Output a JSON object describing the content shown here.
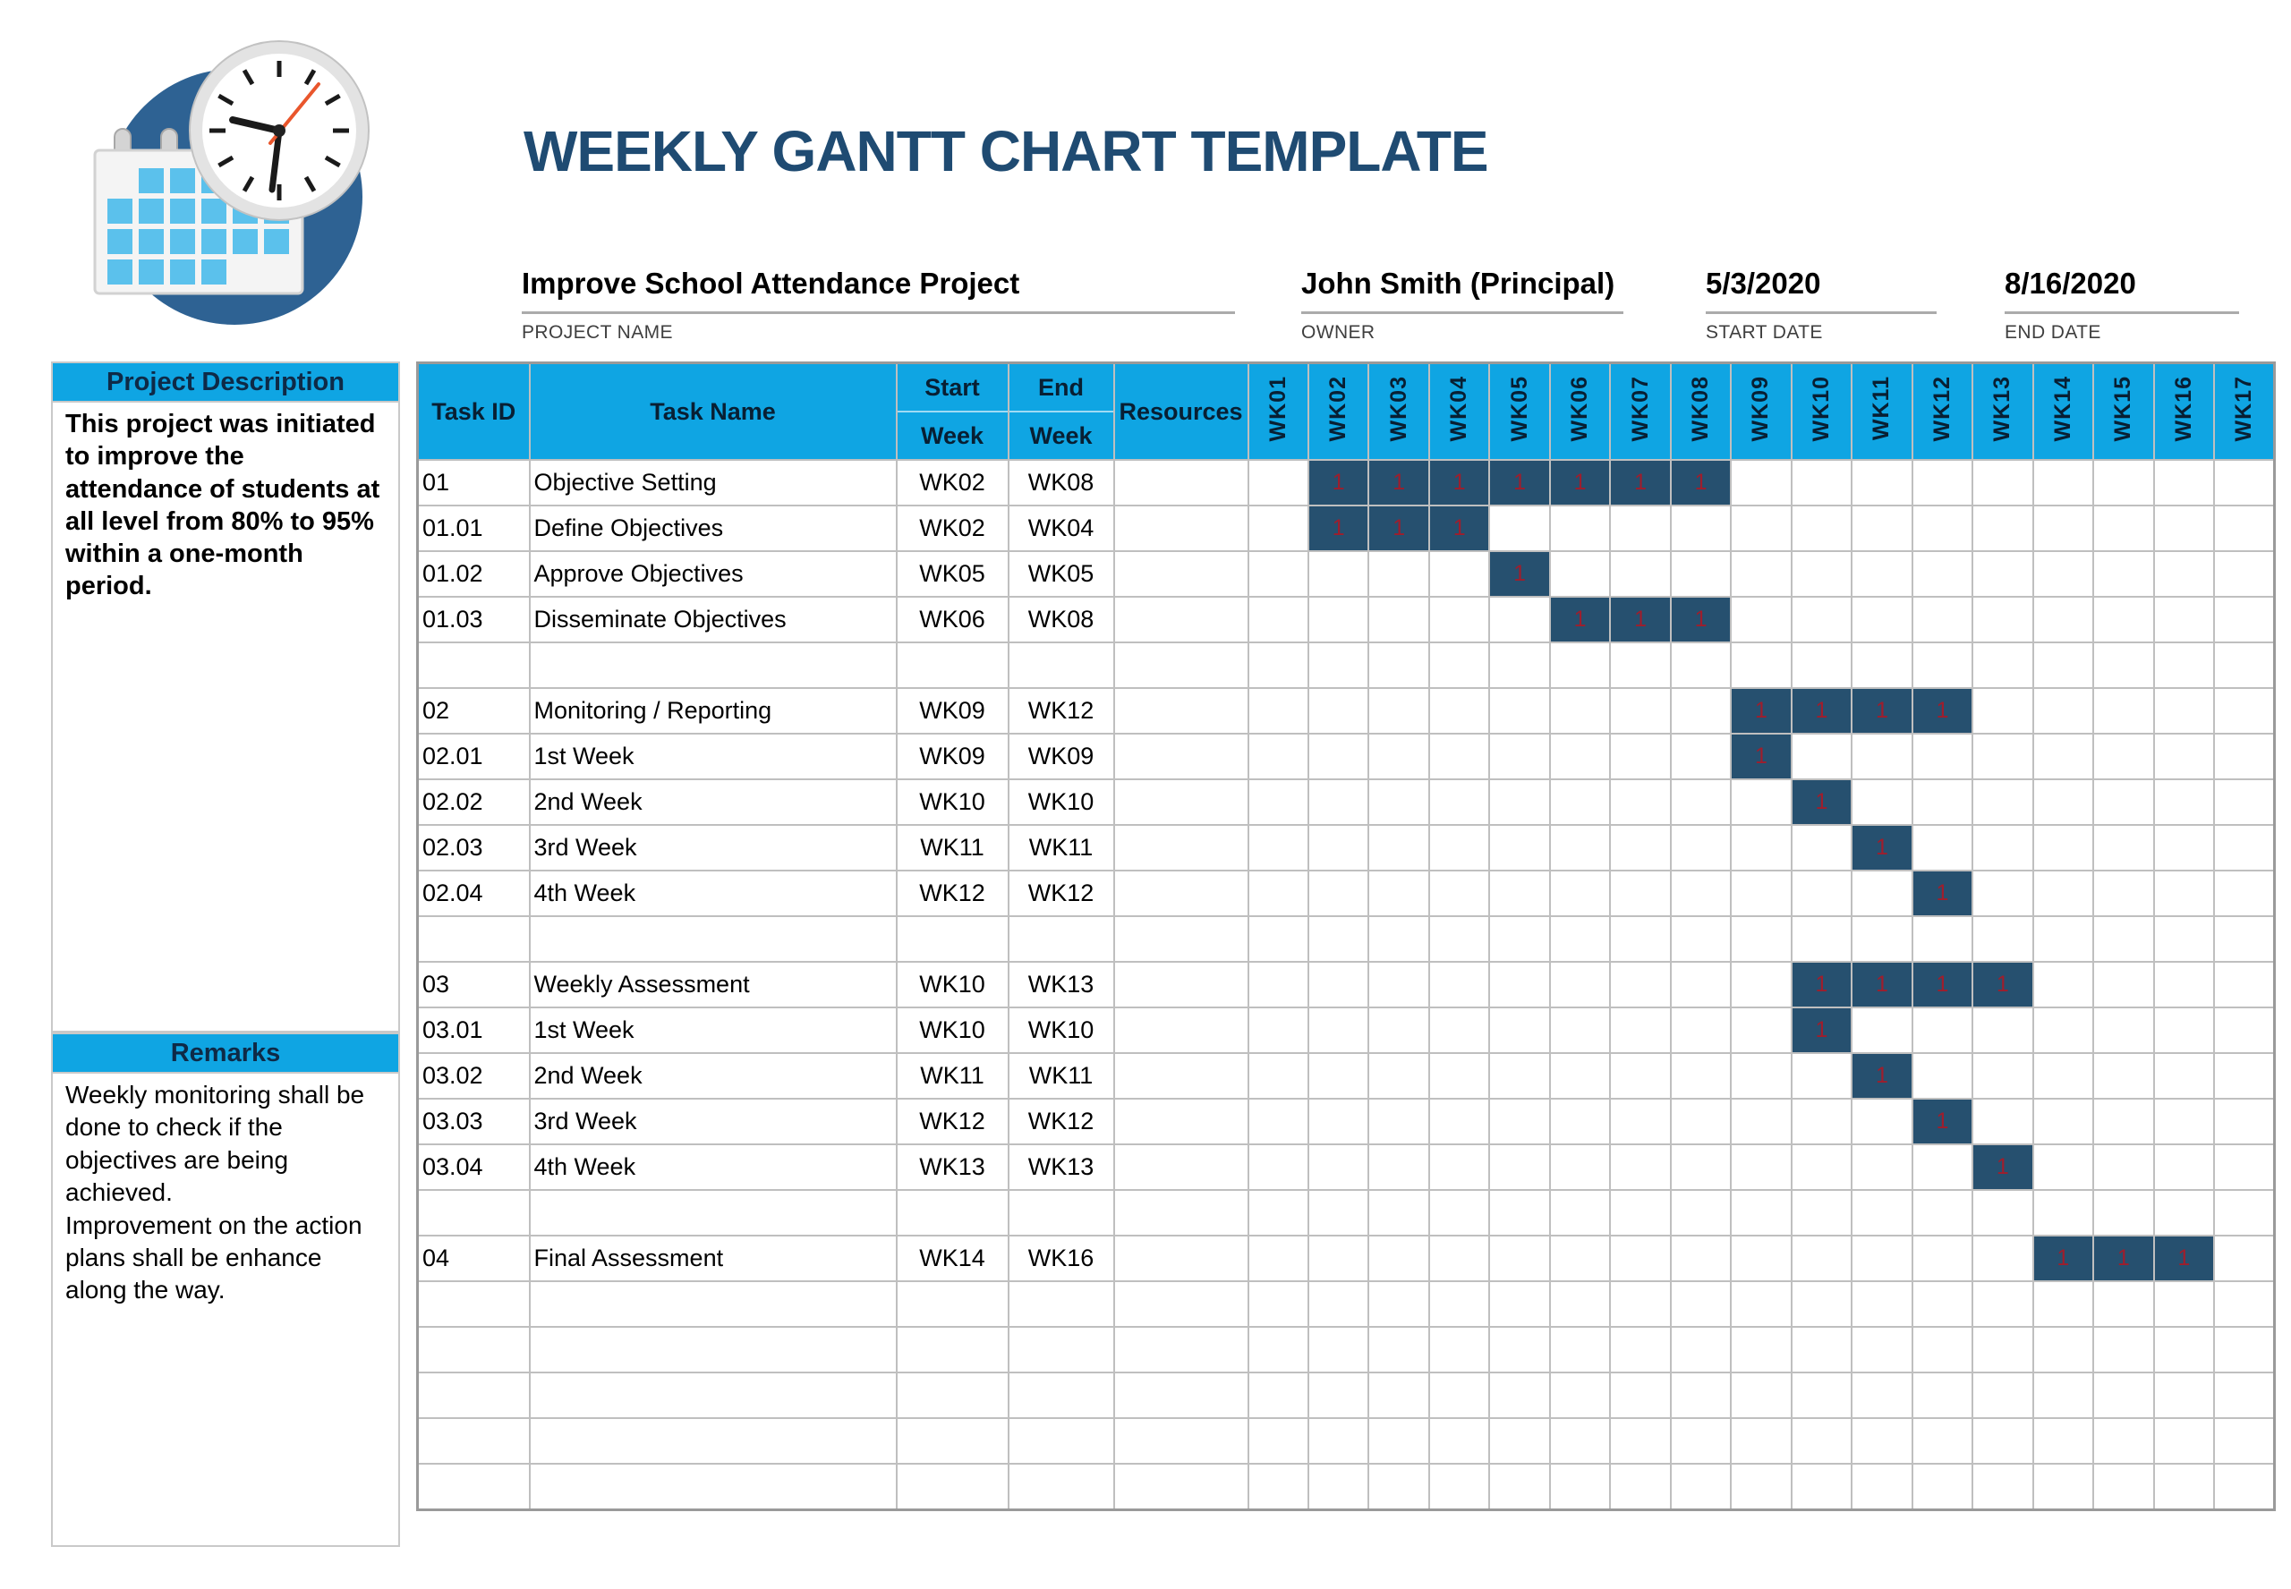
{
  "page_title": "WEEKLY GANTT CHART TEMPLATE",
  "colors": {
    "title_navy": "#1F4B72",
    "accent_cyan": "#0FA5E3",
    "bar_fill_navy": "#26506F",
    "bar_value_red": "#9E1E2D",
    "grid_gray": "#BFBFBF",
    "logo_circle_blue": "#2E6293",
    "logo_calendar_blue": "#5BC1EC"
  },
  "logo": {
    "name": "calendar-clock-logo"
  },
  "info": {
    "project_name": {
      "value": "Improve School Attendance Project",
      "label": "PROJECT NAME"
    },
    "owner": {
      "value": "John Smith (Principal)",
      "label": "OWNER"
    },
    "start_date": {
      "value": "5/3/2020",
      "label": "START DATE"
    },
    "end_date": {
      "value": "8/16/2020",
      "label": "END DATE"
    }
  },
  "sidebar": {
    "description_header": "Project Description",
    "description_text": "This project was initiated to improve the attendance of students at all level from 80% to 95% within a one-month period.",
    "remarks_header": "Remarks",
    "remarks_text": "Weekly monitoring shall be done to check if the objectives are being achieved.\nImprovement on the action plans shall be enhance along the way."
  },
  "table": {
    "headers": {
      "task_id": "Task ID",
      "task_name": "Task Name",
      "start_week": [
        "Start",
        "Week"
      ],
      "end_week": [
        "End",
        "Week"
      ],
      "resources": "Resources"
    },
    "bar_label": "1",
    "row_order": [
      "01",
      "01.01",
      "01.02",
      "01.03",
      "",
      "02",
      "02.01",
      "02.02",
      "02.03",
      "02.04",
      "",
      "03",
      "03.01",
      "03.02",
      "03.03",
      "03.04",
      "",
      "04",
      "",
      "",
      "",
      "",
      ""
    ]
  },
  "chart_data": {
    "type": "table",
    "subtype": "gantt",
    "title": "WEEKLY GANTT CHART TEMPLATE",
    "project_name": "Improve School Attendance Project",
    "owner": "John Smith (Principal)",
    "start_date": "5/3/2020",
    "end_date": "8/16/2020",
    "x_categories": [
      "WK01",
      "WK02",
      "WK03",
      "WK04",
      "WK05",
      "WK06",
      "WK07",
      "WK08",
      "WK09",
      "WK10",
      "WK11",
      "WK12",
      "WK13",
      "WK14",
      "WK15",
      "WK16",
      "WK17"
    ],
    "cell_value_when_active": "1",
    "tasks": [
      {
        "id": "01",
        "name": "Objective Setting",
        "start_week": "WK02",
        "end_week": "WK08",
        "bar": [
          2,
          8
        ]
      },
      {
        "id": "01.01",
        "name": "Define Objectives",
        "start_week": "WK02",
        "end_week": "WK04",
        "bar": [
          2,
          4
        ]
      },
      {
        "id": "01.02",
        "name": "Approve Objectives",
        "start_week": "WK05",
        "end_week": "WK05",
        "bar": [
          5,
          5
        ]
      },
      {
        "id": "01.03",
        "name": "Disseminate Objectives",
        "start_week": "WK06",
        "end_week": "WK08",
        "bar": [
          6,
          8
        ]
      },
      {
        "id": "02",
        "name": "Monitoring / Reporting",
        "start_week": "WK09",
        "end_week": "WK12",
        "bar": [
          9,
          12
        ]
      },
      {
        "id": "02.01",
        "name": "1st Week",
        "start_week": "WK09",
        "end_week": "WK09",
        "bar": [
          9,
          9
        ]
      },
      {
        "id": "02.02",
        "name": "2nd Week",
        "start_week": "WK10",
        "end_week": "WK10",
        "bar": [
          10,
          10
        ]
      },
      {
        "id": "02.03",
        "name": "3rd Week",
        "start_week": "WK11",
        "end_week": "WK11",
        "bar": [
          11,
          11
        ]
      },
      {
        "id": "02.04",
        "name": "4th Week",
        "start_week": "WK12",
        "end_week": "WK12",
        "bar": [
          12,
          12
        ]
      },
      {
        "id": "03",
        "name": "Weekly Assessment",
        "start_week": "WK10",
        "end_week": "WK13",
        "bar": [
          10,
          13
        ]
      },
      {
        "id": "03.01",
        "name": "1st Week",
        "start_week": "WK10",
        "end_week": "WK10",
        "bar": [
          10,
          10
        ]
      },
      {
        "id": "03.02",
        "name": "2nd Week",
        "start_week": "WK11",
        "end_week": "WK11",
        "bar": [
          11,
          11
        ]
      },
      {
        "id": "03.03",
        "name": "3rd Week",
        "start_week": "WK12",
        "end_week": "WK12",
        "bar": [
          12,
          12
        ]
      },
      {
        "id": "03.04",
        "name": "4th Week",
        "start_week": "WK13",
        "end_week": "WK13",
        "bar": [
          13,
          13
        ]
      },
      {
        "id": "04",
        "name": "Final Assessment",
        "start_week": "WK14",
        "end_week": "WK16",
        "bar": [
          14,
          16
        ]
      }
    ]
  }
}
